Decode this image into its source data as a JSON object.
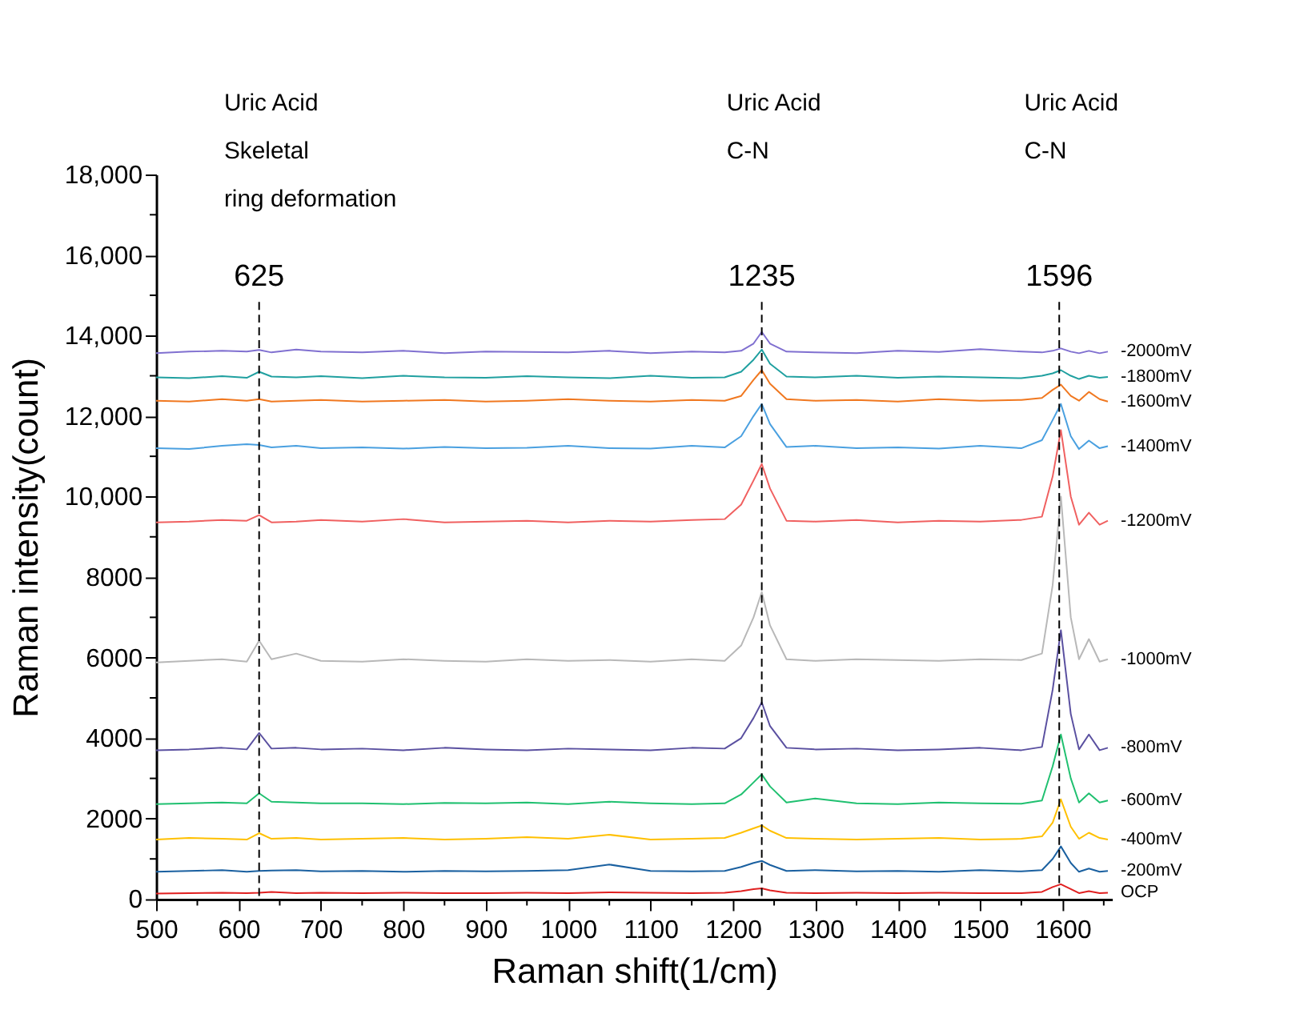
{
  "chart_data": {
    "type": "line",
    "xlabel": "Raman shift(1/cm)",
    "ylabel": "Raman intensity(count)",
    "x": [
      500,
      540,
      580,
      610,
      625,
      640,
      670,
      700,
      750,
      800,
      850,
      900,
      950,
      1000,
      1050,
      1100,
      1150,
      1190,
      1210,
      1225,
      1235,
      1245,
      1265,
      1300,
      1350,
      1400,
      1450,
      1500,
      1550,
      1575,
      1588,
      1598,
      1610,
      1620,
      1632,
      1645,
      1655
    ],
    "series": [
      {
        "name": "-2000mV",
        "color": "#8070d0",
        "values": [
          13560,
          13600,
          13620,
          13600,
          13640,
          13580,
          13650,
          13600,
          13580,
          13620,
          13560,
          13600,
          13590,
          13580,
          13620,
          13560,
          13600,
          13580,
          13620,
          13800,
          14090,
          13800,
          13600,
          13580,
          13560,
          13620,
          13590,
          13660,
          13600,
          13580,
          13620,
          13680,
          13600,
          13560,
          13620,
          13560,
          13600
        ]
      },
      {
        "name": "-1800mV",
        "color": "#20a0a0",
        "values": [
          12960,
          12940,
          12990,
          12950,
          13100,
          12980,
          12960,
          12990,
          12940,
          13000,
          12960,
          12950,
          12990,
          12960,
          12940,
          13000,
          12950,
          12960,
          13100,
          13400,
          13650,
          13300,
          12980,
          12960,
          13000,
          12950,
          12980,
          12960,
          12940,
          13000,
          13060,
          13140,
          13000,
          12920,
          13000,
          12950,
          12970
        ]
      },
      {
        "name": "-1600mV",
        "color": "#f07820",
        "values": [
          12380,
          12360,
          12420,
          12380,
          12420,
          12360,
          12380,
          12400,
          12360,
          12380,
          12400,
          12360,
          12380,
          12420,
          12380,
          12360,
          12400,
          12380,
          12500,
          12900,
          13140,
          12800,
          12420,
          12380,
          12400,
          12360,
          12420,
          12380,
          12400,
          12450,
          12650,
          12780,
          12500,
          12380,
          12600,
          12420,
          12360
        ]
      },
      {
        "name": "-1400mV",
        "color": "#4aa0e0",
        "values": [
          11200,
          11180,
          11260,
          11300,
          11280,
          11220,
          11260,
          11200,
          11220,
          11190,
          11230,
          11200,
          11210,
          11260,
          11200,
          11190,
          11260,
          11220,
          11500,
          12000,
          12300,
          11800,
          11230,
          11260,
          11200,
          11220,
          11190,
          11260,
          11200,
          11400,
          11900,
          12300,
          11500,
          11180,
          11390,
          11200,
          11250
        ]
      },
      {
        "name": "-1200mV",
        "color": "#f06060",
        "values": [
          9360,
          9380,
          9420,
          9400,
          9540,
          9360,
          9380,
          9420,
          9380,
          9440,
          9360,
          9380,
          9400,
          9360,
          9400,
          9380,
          9420,
          9440,
          9800,
          10400,
          10810,
          10200,
          9400,
          9380,
          9420,
          9360,
          9400,
          9380,
          9420,
          9500,
          10500,
          11650,
          10000,
          9300,
          9600,
          9300,
          9400
        ]
      },
      {
        "name": "-1000mV",
        "color": "#b8b8b8",
        "values": [
          5880,
          5920,
          5960,
          5900,
          6420,
          5960,
          6100,
          5920,
          5900,
          5960,
          5920,
          5900,
          5960,
          5920,
          5940,
          5900,
          5960,
          5920,
          6300,
          7000,
          7630,
          6800,
          5960,
          5920,
          5960,
          5940,
          5920,
          5960,
          5940,
          6100,
          7800,
          10000,
          7000,
          5960,
          6460,
          5900,
          5960
        ]
      },
      {
        "name": "-800mV",
        "color": "#5a50a0",
        "values": [
          3700,
          3720,
          3760,
          3720,
          4130,
          3740,
          3760,
          3720,
          3740,
          3700,
          3760,
          3720,
          3700,
          3740,
          3720,
          3700,
          3760,
          3740,
          4000,
          4500,
          4890,
          4300,
          3760,
          3720,
          3740,
          3700,
          3720,
          3760,
          3700,
          3780,
          5200,
          6680,
          4600,
          3720,
          4090,
          3700,
          3760
        ]
      },
      {
        "name": "-600mV",
        "color": "#20c070",
        "values": [
          2360,
          2380,
          2400,
          2380,
          2630,
          2420,
          2400,
          2380,
          2380,
          2360,
          2390,
          2380,
          2400,
          2360,
          2420,
          2380,
          2360,
          2380,
          2600,
          2900,
          3100,
          2800,
          2400,
          2500,
          2380,
          2360,
          2400,
          2380,
          2370,
          2450,
          3300,
          4090,
          3000,
          2400,
          2630,
          2400,
          2450
        ]
      },
      {
        "name": "-400mV",
        "color": "#ffc000",
        "values": [
          1480,
          1520,
          1500,
          1480,
          1640,
          1500,
          1520,
          1480,
          1500,
          1520,
          1480,
          1500,
          1540,
          1500,
          1600,
          1480,
          1500,
          1520,
          1650,
          1760,
          1830,
          1700,
          1520,
          1500,
          1480,
          1500,
          1520,
          1480,
          1500,
          1560,
          1900,
          2480,
          1800,
          1500,
          1650,
          1520,
          1480
        ]
      },
      {
        "name": "-200mV",
        "color": "#1a60a0",
        "values": [
          680,
          700,
          720,
          680,
          700,
          710,
          720,
          690,
          700,
          680,
          700,
          690,
          700,
          720,
          860,
          700,
          690,
          700,
          800,
          900,
          950,
          850,
          700,
          720,
          690,
          700,
          680,
          720,
          690,
          720,
          1000,
          1310,
          900,
          680,
          760,
          680,
          700
        ]
      },
      {
        "name": "OCP",
        "color": "#e02020",
        "values": [
          140,
          150,
          160,
          150,
          160,
          180,
          150,
          160,
          150,
          160,
          150,
          150,
          160,
          150,
          170,
          160,
          150,
          160,
          200,
          250,
          270,
          220,
          160,
          150,
          160,
          150,
          160,
          150,
          150,
          180,
          300,
          370,
          250,
          150,
          200,
          150,
          160
        ]
      }
    ],
    "xlim": [
      500,
      1660
    ],
    "xticks": [
      500,
      {
        "value": 550,
        "label": null
      },
      600,
      {
        "value": 650,
        "label": null
      },
      700,
      {
        "value": 750,
        "label": null
      },
      800,
      {
        "value": 850,
        "label": null
      },
      900,
      {
        "value": 950,
        "label": null
      },
      1000,
      {
        "value": 1050,
        "label": null
      },
      1100,
      {
        "value": 1150,
        "label": null
      },
      1200,
      {
        "value": 1250,
        "label": null
      },
      1300,
      {
        "value": 1350,
        "label": null
      },
      1400,
      {
        "value": 1450,
        "label": null
      },
      1500,
      {
        "value": 1550,
        "label": null
      },
      1600,
      {
        "value": 1650,
        "label": null
      }
    ],
    "ylim": [
      0,
      18000
    ],
    "yticks": [
      0,
      {
        "value": 1000,
        "label": null
      },
      2000,
      {
        "value": 3000,
        "label": null
      },
      4000,
      {
        "value": 5000,
        "label": null
      },
      6000,
      {
        "value": 7000,
        "label": null
      },
      8000,
      {
        "value": 9000,
        "label": null
      },
      {
        "value": 10000,
        "label": "10,000"
      },
      {
        "value": 11000,
        "label": null
      },
      {
        "value": 12000,
        "label": "12,000"
      },
      {
        "value": 13000,
        "label": null
      },
      {
        "value": 14000,
        "label": "14,000"
      },
      {
        "value": 15000,
        "label": null
      },
      {
        "value": 16000,
        "label": "16,000"
      },
      {
        "value": 17000,
        "label": null
      },
      {
        "value": 18000,
        "label": "18,000"
      }
    ],
    "ref_lines": [
      {
        "axis": "x",
        "value": 625,
        "label": "625",
        "color": "#000000",
        "line_style": "dashed"
      },
      {
        "axis": "x",
        "value": 1235,
        "label": "1235",
        "color": "#000000",
        "line_style": "dashed"
      },
      {
        "axis": "x",
        "value": 1596,
        "label": "1596",
        "color": "#000000",
        "line_style": "dashed"
      }
    ],
    "annotations": [
      "Uric Acid\nSkeletal\nring deformation",
      "Uric Acid\nC-N",
      "Uric Acid\nC-N"
    ],
    "grid": false,
    "legend": false,
    "marker": "none",
    "line_style": "solid"
  }
}
